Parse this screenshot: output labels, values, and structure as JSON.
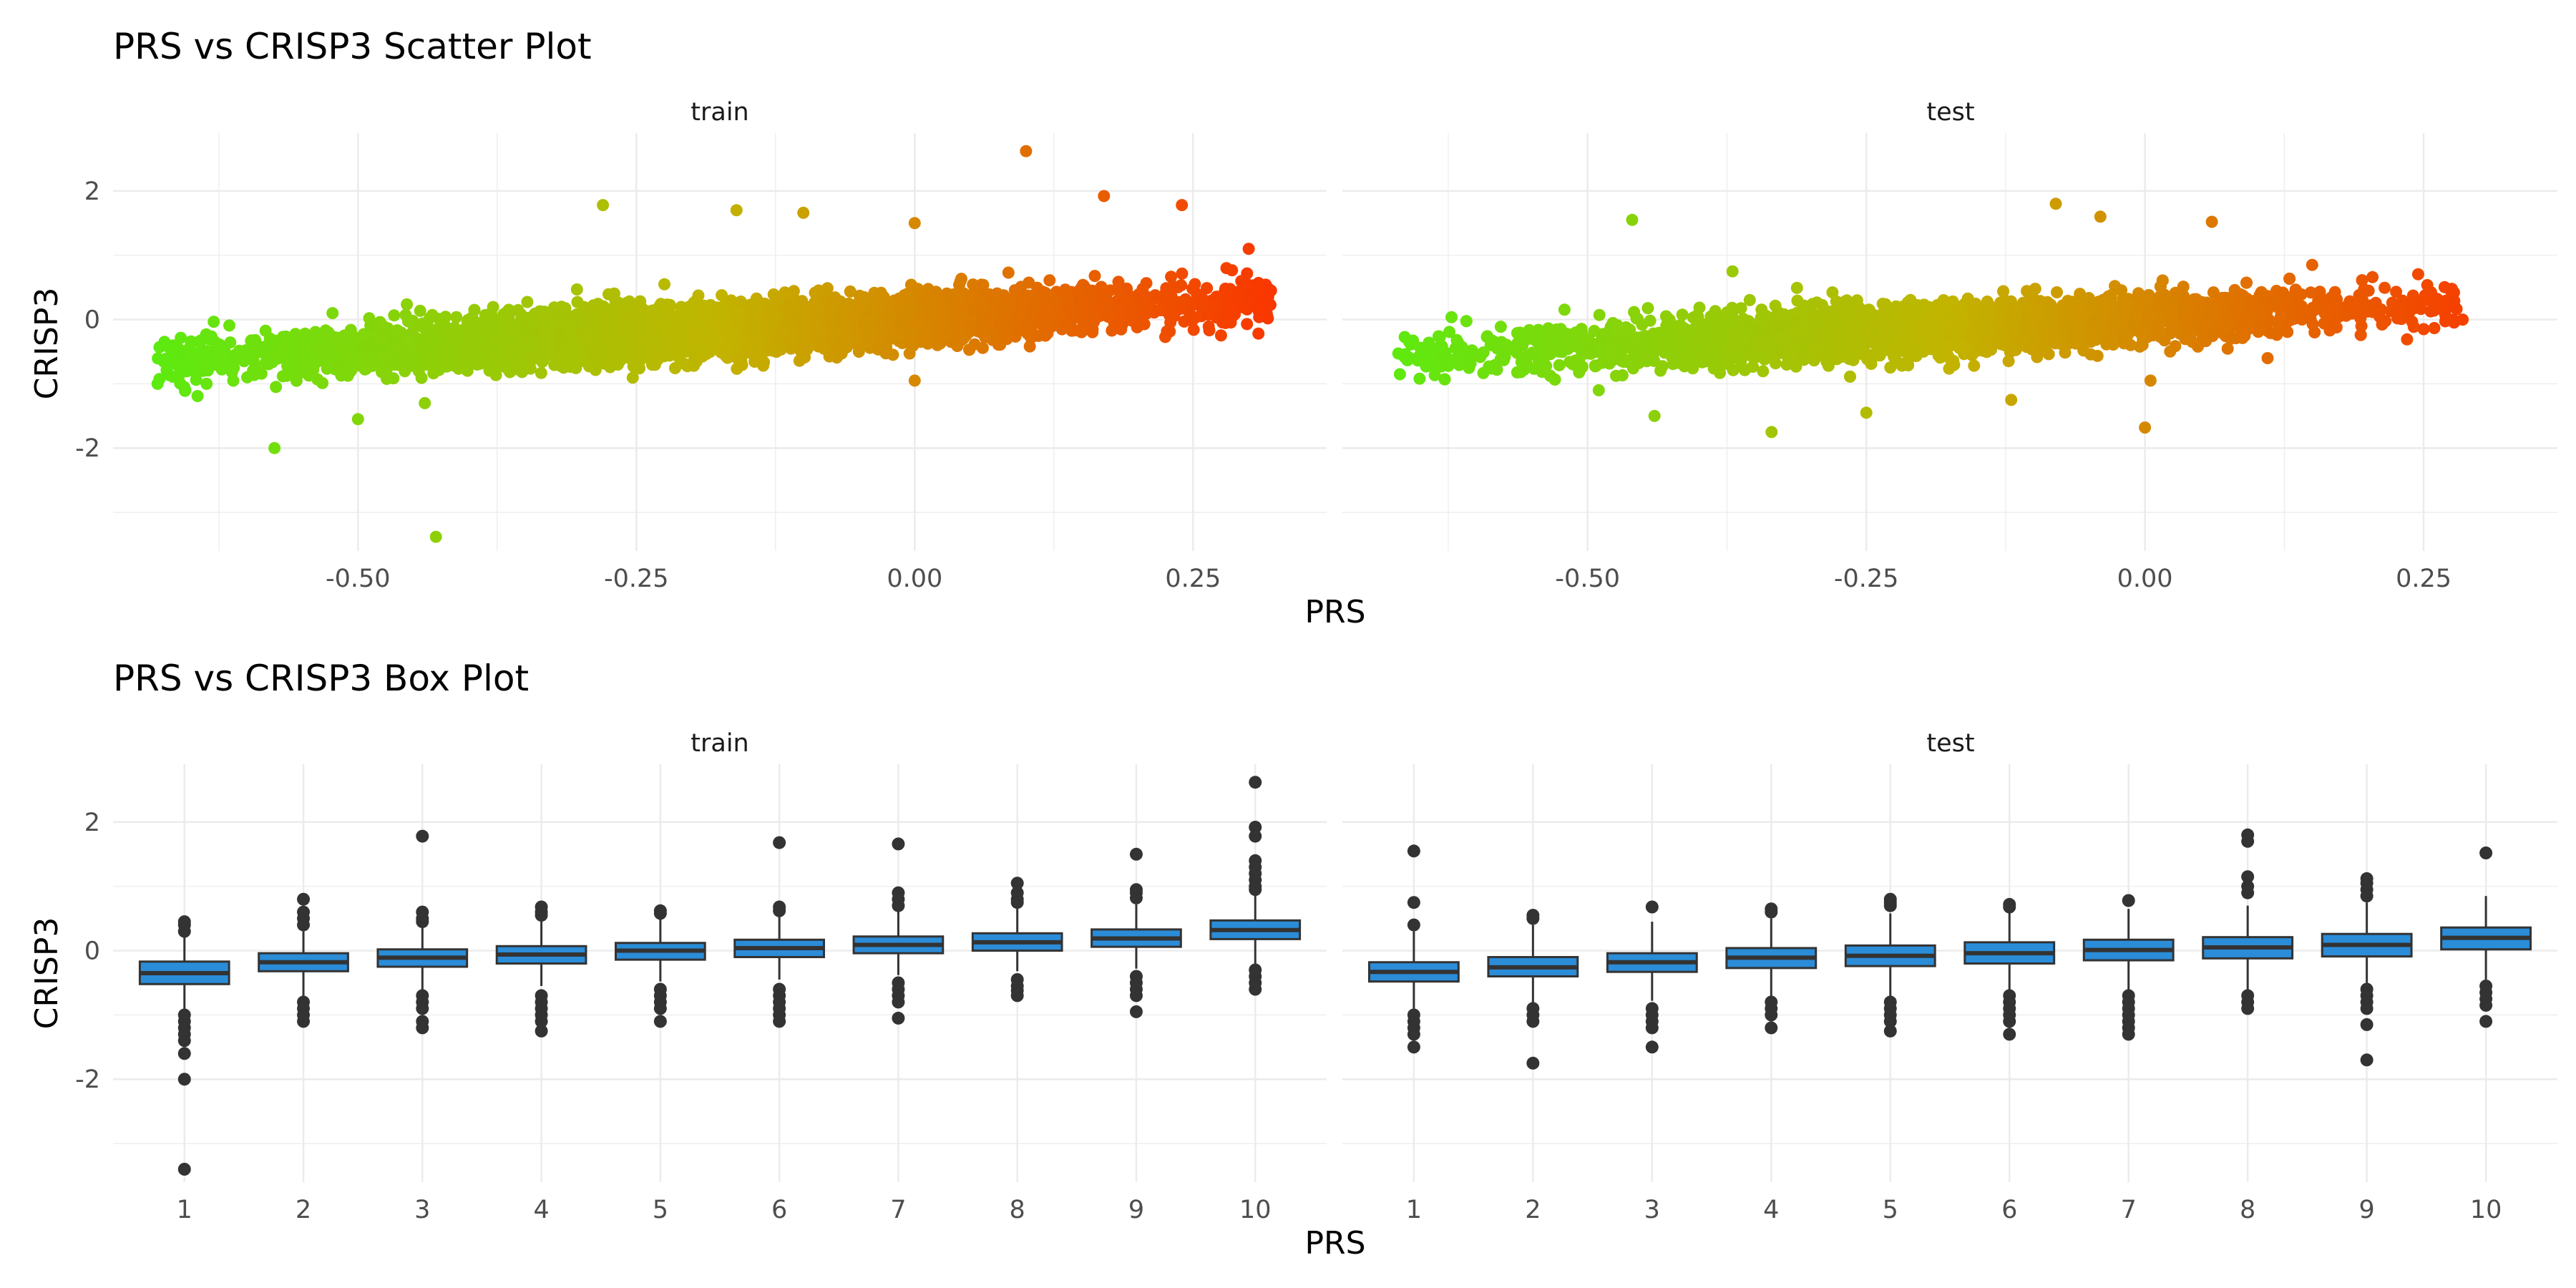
{
  "chart_data": [
    {
      "type": "scatter",
      "title": "PRS vs CRISP3 Scatter Plot",
      "xlabel": "PRS",
      "ylabel": "CRISP3",
      "facets": [
        "train",
        "test"
      ],
      "xlim": [
        -0.72,
        0.37
      ],
      "ylim": [
        -3.6,
        2.9
      ],
      "x_ticks": [
        -0.5,
        -0.25,
        0.0,
        0.25
      ],
      "x_tick_labels": [
        "-0.50",
        "-0.25",
        "0.00",
        "0.25"
      ],
      "y_ticks": [
        -2,
        0,
        2
      ],
      "y_tick_labels": [
        "-2",
        "0",
        "2"
      ],
      "color_gradient": {
        "low": "#55ee11",
        "mid": "#c2b400",
        "high": "#ff2a00"
      },
      "trend": {
        "train": {
          "intercept": 0.0,
          "slope": 0.95,
          "x_range": [
            -0.68,
            0.32
          ]
        },
        "test": {
          "intercept": 0.0,
          "slope": 0.85,
          "x_range": [
            -0.67,
            0.28
          ]
        }
      },
      "outliers": {
        "train": [
          [
            -0.68,
            -1.0
          ],
          [
            -0.66,
            -0.85
          ],
          [
            -0.655,
            -1.1
          ],
          [
            -0.575,
            -2.0
          ],
          [
            -0.5,
            -1.55
          ],
          [
            -0.43,
            -3.38
          ],
          [
            -0.44,
            -1.3
          ],
          [
            -0.28,
            1.78
          ],
          [
            -0.16,
            1.7
          ],
          [
            -0.1,
            1.66
          ],
          [
            0.0,
            1.5
          ],
          [
            0.1,
            2.62
          ],
          [
            0.17,
            1.92
          ],
          [
            0.24,
            1.78
          ],
          [
            0.3,
            1.1
          ],
          [
            0.32,
            0.45
          ],
          [
            0.28,
            0.8
          ],
          [
            0.0,
            -0.95
          ],
          [
            -0.04,
            -0.1
          ]
        ],
        "test": [
          [
            -0.66,
            -0.35
          ],
          [
            -0.63,
            -0.6
          ],
          [
            -0.49,
            -1.1
          ],
          [
            -0.46,
            1.55
          ],
          [
            -0.44,
            -1.5
          ],
          [
            -0.37,
            0.75
          ],
          [
            -0.335,
            -1.75
          ],
          [
            -0.25,
            -1.45
          ],
          [
            -0.08,
            1.8
          ],
          [
            -0.04,
            1.6
          ],
          [
            0.06,
            1.52
          ],
          [
            0.0,
            -1.68
          ],
          [
            0.005,
            -0.95
          ],
          [
            -0.12,
            -1.25
          ],
          [
            0.26,
            0.3
          ],
          [
            0.285,
            0.0
          ],
          [
            0.25,
            -0.15
          ],
          [
            0.11,
            -0.6
          ],
          [
            0.15,
            0.85
          ]
        ]
      }
    },
    {
      "type": "box",
      "title": "PRS vs CRISP3 Box Plot",
      "xlabel": "PRS",
      "ylabel": "CRISP3",
      "facets": [
        "train",
        "test"
      ],
      "categories": [
        "1",
        "2",
        "3",
        "4",
        "5",
        "6",
        "7",
        "8",
        "9",
        "10"
      ],
      "ylim": [
        -3.6,
        2.9
      ],
      "y_ticks": [
        -2,
        0,
        2
      ],
      "y_tick_labels": [
        "-2",
        "0",
        "2"
      ],
      "fill_color": "#2b8cd8",
      "boxes": {
        "train": [
          {
            "q1": -0.52,
            "median": -0.35,
            "q3": -0.17,
            "whisker_low": -0.9,
            "whisker_high": 0.35,
            "outliers": [
              0.45,
              0.4,
              0.3,
              -1.0,
              -1.1,
              -1.2,
              -1.3,
              -1.4,
              -1.6,
              -2.0,
              -3.4
            ]
          },
          {
            "q1": -0.32,
            "median": -0.18,
            "q3": -0.04,
            "whisker_low": -0.7,
            "whisker_high": 0.3,
            "outliers": [
              0.8,
              0.6,
              0.5,
              0.4,
              -0.8,
              -0.9,
              -1.0,
              -1.1
            ]
          },
          {
            "q1": -0.25,
            "median": -0.11,
            "q3": 0.02,
            "whisker_low": -0.62,
            "whisker_high": 0.42,
            "outliers": [
              1.78,
              0.6,
              0.5,
              0.45,
              -0.7,
              -0.8,
              -0.9,
              -1.1,
              -1.2
            ]
          },
          {
            "q1": -0.2,
            "median": -0.06,
            "q3": 0.07,
            "whisker_low": -0.55,
            "whisker_high": 0.5,
            "outliers": [
              0.68,
              0.6,
              0.55,
              -0.7,
              -0.8,
              -0.9,
              -1.0,
              -1.1,
              -1.25
            ]
          },
          {
            "q1": -0.14,
            "median": 0.0,
            "q3": 0.12,
            "whisker_low": -0.48,
            "whisker_high": 0.52,
            "outliers": [
              0.62,
              0.58,
              -0.6,
              -0.7,
              -0.8,
              -0.9,
              -1.1
            ]
          },
          {
            "q1": -0.1,
            "median": 0.04,
            "q3": 0.17,
            "whisker_low": -0.45,
            "whisker_high": 0.55,
            "outliers": [
              1.68,
              0.68,
              0.62,
              -0.6,
              -0.7,
              -0.8,
              -0.9,
              -1.0,
              -1.1
            ]
          },
          {
            "q1": -0.04,
            "median": 0.09,
            "q3": 0.22,
            "whisker_low": -0.38,
            "whisker_high": 0.62,
            "outliers": [
              1.66,
              0.9,
              0.8,
              0.7,
              -0.5,
              -0.6,
              -0.7,
              -0.8,
              -1.05
            ]
          },
          {
            "q1": 0.0,
            "median": 0.13,
            "q3": 0.27,
            "whisker_low": -0.32,
            "whisker_high": 0.68,
            "outliers": [
              1.05,
              0.9,
              0.8,
              0.75,
              -0.45,
              -0.55,
              -0.62,
              -0.7
            ]
          },
          {
            "q1": 0.06,
            "median": 0.19,
            "q3": 0.33,
            "whisker_low": -0.28,
            "whisker_high": 0.72,
            "outliers": [
              1.5,
              0.95,
              0.9,
              0.82,
              -0.4,
              -0.5,
              -0.6,
              -0.7,
              -0.95
            ]
          },
          {
            "q1": 0.18,
            "median": 0.32,
            "q3": 0.47,
            "whisker_low": -0.2,
            "whisker_high": 0.87,
            "outliers": [
              2.62,
              1.92,
              1.78,
              1.4,
              1.3,
              1.2,
              1.1,
              1.0,
              0.95,
              -0.3,
              -0.4,
              -0.5,
              -0.6
            ]
          }
        ],
        "test": [
          {
            "q1": -0.48,
            "median": -0.33,
            "q3": -0.18,
            "whisker_low": -0.9,
            "whisker_high": 0.3,
            "outliers": [
              1.55,
              0.75,
              0.4,
              -1.0,
              -1.1,
              -1.2,
              -1.3,
              -1.5
            ]
          },
          {
            "q1": -0.4,
            "median": -0.26,
            "q3": -0.1,
            "whisker_low": -0.85,
            "whisker_high": 0.4,
            "outliers": [
              0.55,
              0.5,
              -0.9,
              -1.0,
              -1.1,
              -1.75
            ]
          },
          {
            "q1": -0.33,
            "median": -0.18,
            "q3": -0.04,
            "whisker_low": -0.78,
            "whisker_high": 0.45,
            "outliers": [
              0.68,
              -0.9,
              -1.0,
              -1.1,
              -1.2,
              -1.5
            ]
          },
          {
            "q1": -0.27,
            "median": -0.11,
            "q3": 0.04,
            "whisker_low": -0.72,
            "whisker_high": 0.5,
            "outliers": [
              0.65,
              0.6,
              -0.8,
              -0.9,
              -1.0,
              -1.2
            ]
          },
          {
            "q1": -0.24,
            "median": -0.08,
            "q3": 0.08,
            "whisker_low": -0.7,
            "whisker_high": 0.58,
            "outliers": [
              0.8,
              0.75,
              0.7,
              -0.8,
              -0.9,
              -1.0,
              -1.1,
              -1.25
            ]
          },
          {
            "q1": -0.2,
            "median": -0.04,
            "q3": 0.13,
            "whisker_low": -0.68,
            "whisker_high": 0.6,
            "outliers": [
              0.72,
              0.68,
              -0.7,
              -0.8,
              -0.9,
              -1.0,
              -1.1,
              -1.3
            ]
          },
          {
            "q1": -0.15,
            "median": 0.01,
            "q3": 0.17,
            "whisker_low": -0.62,
            "whisker_high": 0.65,
            "outliers": [
              0.78,
              -0.7,
              -0.8,
              -0.9,
              -1.0,
              -1.1,
              -1.2,
              -1.3
            ]
          },
          {
            "q1": -0.12,
            "median": 0.05,
            "q3": 0.21,
            "whisker_low": -0.6,
            "whisker_high": 0.7,
            "outliers": [
              1.8,
              1.7,
              1.15,
              1.0,
              0.9,
              -0.7,
              -0.8,
              -0.9
            ]
          },
          {
            "q1": -0.09,
            "median": 0.09,
            "q3": 0.26,
            "whisker_low": -0.55,
            "whisker_high": 0.75,
            "outliers": [
              1.12,
              1.05,
              0.95,
              0.85,
              -0.6,
              -0.7,
              -0.8,
              -0.9,
              -1.15,
              -1.7
            ]
          },
          {
            "q1": 0.02,
            "median": 0.2,
            "q3": 0.36,
            "whisker_low": -0.45,
            "whisker_high": 0.85,
            "outliers": [
              1.52,
              -0.55,
              -0.65,
              -0.75,
              -0.85,
              -1.1
            ]
          }
        ]
      }
    }
  ]
}
